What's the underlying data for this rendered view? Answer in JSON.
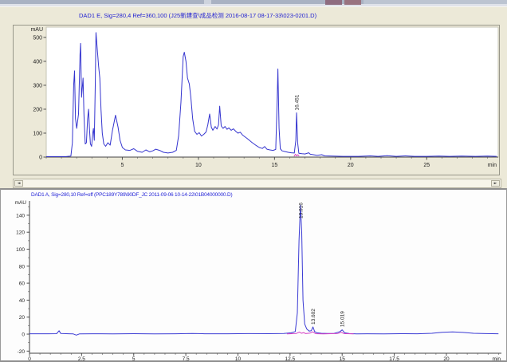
{
  "window": {
    "strip_bar_color": "#a9b2c3",
    "strip_accent1_color": "#8e6c7f",
    "strip_accent2_color": "#99737f"
  },
  "scrollbar": {
    "left_arrow": "◄",
    "right_arrow": "►"
  },
  "chart_data": [
    {
      "type": "line",
      "name": "chromatogram-top",
      "title": "DAD1 E, Sig=280,4 Ref=360,100 (J25新建查\\成品检测 2016-08-17 08-17-33\\023-0201.D)",
      "y_unit": "mAU",
      "x_unit": "min",
      "xlim": [
        0,
        29.7
      ],
      "ylim": [
        0,
        543
      ],
      "xticks": [
        {
          "v": 5,
          "label": "5"
        },
        {
          "v": 10,
          "label": "10"
        },
        {
          "v": 15,
          "label": "15"
        },
        {
          "v": 20,
          "label": "20"
        },
        {
          "v": 25,
          "label": "25"
        }
      ],
      "xtick_minor_step": 1,
      "yticks": [
        {
          "v": 0,
          "label": "0"
        },
        {
          "v": 100,
          "label": "100"
        },
        {
          "v": 200,
          "label": "200"
        },
        {
          "v": 300,
          "label": "300"
        },
        {
          "v": 400,
          "label": "400"
        },
        {
          "v": 500,
          "label": "500"
        }
      ],
      "peak_labels": [
        {
          "t": 16.451,
          "v": 185,
          "label": "16.451"
        }
      ],
      "series": [
        {
          "name": "signal-trace-blue",
          "color": "#3535cf",
          "width": 1,
          "points": [
            [
              0,
              2
            ],
            [
              1.3,
              2
            ],
            [
              1.62,
              4
            ],
            [
              1.72,
              60
            ],
            [
              1.8,
              300
            ],
            [
              1.86,
              360
            ],
            [
              1.92,
              160
            ],
            [
              2.0,
              120
            ],
            [
              2.12,
              180
            ],
            [
              2.22,
              430
            ],
            [
              2.26,
              475
            ],
            [
              2.32,
              250
            ],
            [
              2.42,
              330
            ],
            [
              2.48,
              180
            ],
            [
              2.56,
              55
            ],
            [
              2.64,
              60
            ],
            [
              2.72,
              160
            ],
            [
              2.78,
              200
            ],
            [
              2.84,
              120
            ],
            [
              2.9,
              55
            ],
            [
              2.98,
              45
            ],
            [
              3.06,
              100
            ],
            [
              3.1,
              120
            ],
            [
              3.16,
              70
            ],
            [
              3.22,
              300
            ],
            [
              3.27,
              520
            ],
            [
              3.34,
              460
            ],
            [
              3.44,
              380
            ],
            [
              3.52,
              330
            ],
            [
              3.6,
              200
            ],
            [
              3.68,
              100
            ],
            [
              3.78,
              55
            ],
            [
              3.9,
              45
            ],
            [
              4.05,
              60
            ],
            [
              4.2,
              50
            ],
            [
              4.35,
              110
            ],
            [
              4.55,
              175
            ],
            [
              4.72,
              125
            ],
            [
              4.85,
              70
            ],
            [
              5.0,
              40
            ],
            [
              5.2,
              30
            ],
            [
              5.5,
              28
            ],
            [
              5.75,
              35
            ],
            [
              6.0,
              24
            ],
            [
              6.3,
              20
            ],
            [
              6.55,
              30
            ],
            [
              6.8,
              22
            ],
            [
              7.0,
              26
            ],
            [
              7.2,
              33
            ],
            [
              7.45,
              28
            ],
            [
              7.7,
              20
            ],
            [
              8.0,
              17
            ],
            [
              8.3,
              20
            ],
            [
              8.55,
              28
            ],
            [
              8.7,
              90
            ],
            [
              8.85,
              230
            ],
            [
              9.0,
              420
            ],
            [
              9.07,
              438
            ],
            [
              9.18,
              400
            ],
            [
              9.28,
              330
            ],
            [
              9.4,
              305
            ],
            [
              9.5,
              250
            ],
            [
              9.62,
              160
            ],
            [
              9.75,
              108
            ],
            [
              9.9,
              95
            ],
            [
              10.05,
              102
            ],
            [
              10.2,
              88
            ],
            [
              10.35,
              95
            ],
            [
              10.5,
              105
            ],
            [
              10.62,
              135
            ],
            [
              10.74,
              180
            ],
            [
              10.85,
              125
            ],
            [
              10.95,
              112
            ],
            [
              11.1,
              128
            ],
            [
              11.22,
              117
            ],
            [
              11.32,
              135
            ],
            [
              11.4,
              213
            ],
            [
              11.5,
              130
            ],
            [
              11.62,
              120
            ],
            [
              11.75,
              128
            ],
            [
              11.88,
              116
            ],
            [
              12.0,
              122
            ],
            [
              12.15,
              112
            ],
            [
              12.3,
              118
            ],
            [
              12.45,
              108
            ],
            [
              12.6,
              100
            ],
            [
              12.75,
              104
            ],
            [
              12.9,
              92
            ],
            [
              13.05,
              85
            ],
            [
              13.2,
              78
            ],
            [
              13.35,
              70
            ],
            [
              13.5,
              62
            ],
            [
              13.65,
              55
            ],
            [
              13.8,
              48
            ],
            [
              14.0,
              40
            ],
            [
              14.2,
              36
            ],
            [
              14.35,
              44
            ],
            [
              14.5,
              33
            ],
            [
              14.7,
              30
            ],
            [
              14.9,
              28
            ],
            [
              15.08,
              32
            ],
            [
              15.18,
              250
            ],
            [
              15.22,
              368
            ],
            [
              15.3,
              120
            ],
            [
              15.38,
              35
            ],
            [
              15.5,
              26
            ],
            [
              15.7,
              23
            ],
            [
              15.9,
              20
            ],
            [
              16.1,
              18
            ],
            [
              16.3,
              17
            ],
            [
              16.4,
              70
            ],
            [
              16.45,
              185
            ],
            [
              16.52,
              60
            ],
            [
              16.6,
              16
            ],
            [
              16.8,
              14
            ],
            [
              17.0,
              13
            ],
            [
              17.25,
              18
            ],
            [
              17.35,
              12
            ],
            [
              17.55,
              10
            ],
            [
              17.8,
              7
            ],
            [
              18.1,
              10
            ],
            [
              18.3,
              5
            ],
            [
              18.8,
              4
            ],
            [
              19.5,
              3
            ],
            [
              20.5,
              3
            ],
            [
              21.3,
              5
            ],
            [
              21.8,
              3
            ],
            [
              22.4,
              6
            ],
            [
              23.0,
              3
            ],
            [
              23.6,
              5
            ],
            [
              24.2,
              3
            ],
            [
              25.0,
              3
            ],
            [
              25.8,
              4
            ],
            [
              26.5,
              3
            ],
            [
              27.3,
              4
            ],
            [
              28.2,
              3
            ],
            [
              29.0,
              4
            ],
            [
              29.6,
              3
            ]
          ]
        },
        {
          "name": "integration-marker-magenta",
          "color": "#d446c0",
          "width": 1,
          "points": [
            [
              16.28,
              3
            ],
            [
              16.38,
              12
            ],
            [
              16.45,
              5
            ],
            [
              16.53,
              10
            ],
            [
              16.62,
              4
            ]
          ]
        }
      ]
    },
    {
      "type": "line",
      "name": "chromatogram-bottom",
      "title": "DAD1 A, Sig=280,10 Ref=off (PPC189Y789\\90DF_JC 2011-09-06 10-14-22\\01B04000000.D)",
      "y_unit": "mAU",
      "x_unit": "min",
      "xlim": [
        0,
        22.64
      ],
      "ylim": [
        -22.5,
        158.7
      ],
      "xticks": [
        {
          "v": 0,
          "label": "0"
        },
        {
          "v": 2.5,
          "label": "2.5"
        },
        {
          "v": 5,
          "label": "5"
        },
        {
          "v": 7.5,
          "label": "7.5"
        },
        {
          "v": 10,
          "label": "10"
        },
        {
          "v": 12.5,
          "label": "12.5"
        },
        {
          "v": 15,
          "label": "15"
        },
        {
          "v": 17.5,
          "label": "17.5"
        },
        {
          "v": 20,
          "label": "20"
        }
      ],
      "xtick_minor_step": 0.5,
      "yticks": [
        {
          "v": -20,
          "label": "-20"
        },
        {
          "v": 0,
          "label": "0"
        },
        {
          "v": 20,
          "label": "20"
        },
        {
          "v": 40,
          "label": "40"
        },
        {
          "v": 60,
          "label": "60"
        },
        {
          "v": 80,
          "label": "80"
        },
        {
          "v": 100,
          "label": "100"
        },
        {
          "v": 120,
          "label": "120"
        },
        {
          "v": 140,
          "label": "140"
        }
      ],
      "ytick_minor_step": 10,
      "peak_labels": [
        {
          "t": 13.0,
          "v": 152,
          "label": "13.016"
        },
        {
          "t": 13.6,
          "v": 8.5,
          "label": "13.602"
        },
        {
          "t": 15.0,
          "v": 5.6,
          "label": "15.019"
        }
      ],
      "series": [
        {
          "name": "signal-trace-blue",
          "color": "#3a3ad4",
          "width": 1,
          "points": [
            [
              0,
              0.4
            ],
            [
              0.9,
              0.4
            ],
            [
              1.3,
              0.5
            ],
            [
              1.42,
              4
            ],
            [
              1.5,
              0.8
            ],
            [
              1.9,
              0.4
            ],
            [
              2.1,
              0.2
            ],
            [
              2.25,
              -1.2
            ],
            [
              2.4,
              0.3
            ],
            [
              3.0,
              0.4
            ],
            [
              4.0,
              0.3
            ],
            [
              5.0,
              0.5
            ],
            [
              6.0,
              0.3
            ],
            [
              7.0,
              0.4
            ],
            [
              7.8,
              0.8
            ],
            [
              8.4,
              0.4
            ],
            [
              9.5,
              0.4
            ],
            [
              10.5,
              0.6
            ],
            [
              11.5,
              0.5
            ],
            [
              12.2,
              0.8
            ],
            [
              12.55,
              1.5
            ],
            [
              12.75,
              3
            ],
            [
              12.85,
              25
            ],
            [
              12.93,
              110
            ],
            [
              13.0,
              152
            ],
            [
              13.06,
              120
            ],
            [
              13.12,
              40
            ],
            [
              13.2,
              12
            ],
            [
              13.3,
              6
            ],
            [
              13.42,
              3.5
            ],
            [
              13.52,
              4
            ],
            [
              13.6,
              8.5
            ],
            [
              13.68,
              3
            ],
            [
              13.8,
              1.5
            ],
            [
              14.0,
              1
            ],
            [
              14.3,
              0.8
            ],
            [
              14.6,
              0.8
            ],
            [
              14.9,
              3
            ],
            [
              15.0,
              5
            ],
            [
              15.12,
              1.5
            ],
            [
              15.35,
              0.6
            ],
            [
              15.7,
              0.3
            ],
            [
              16.2,
              0.4
            ],
            [
              17.0,
              0.3
            ],
            [
              17.8,
              0.5
            ],
            [
              18.6,
              0.4
            ],
            [
              19.3,
              1
            ],
            [
              19.8,
              2.2
            ],
            [
              20.3,
              2.6
            ],
            [
              20.8,
              2
            ],
            [
              21.3,
              1
            ],
            [
              21.9,
              0.6
            ],
            [
              22.5,
              0.4
            ]
          ]
        },
        {
          "name": "reference-trace-magenta",
          "color": "#d43cc4",
          "width": 1,
          "points": [
            [
              12.35,
              0.2
            ],
            [
              12.8,
              0.8
            ],
            [
              12.95,
              2.5
            ],
            [
              13.05,
              1
            ],
            [
              13.15,
              1.8
            ],
            [
              13.25,
              0.6
            ],
            [
              13.45,
              1.2
            ],
            [
              13.6,
              2.8
            ],
            [
              13.72,
              0.5
            ],
            [
              14.1,
              0.3
            ],
            [
              14.8,
              0.8
            ],
            [
              14.95,
              2.2
            ],
            [
              15.1,
              0.6
            ],
            [
              15.55,
              0.2
            ]
          ]
        }
      ]
    }
  ]
}
